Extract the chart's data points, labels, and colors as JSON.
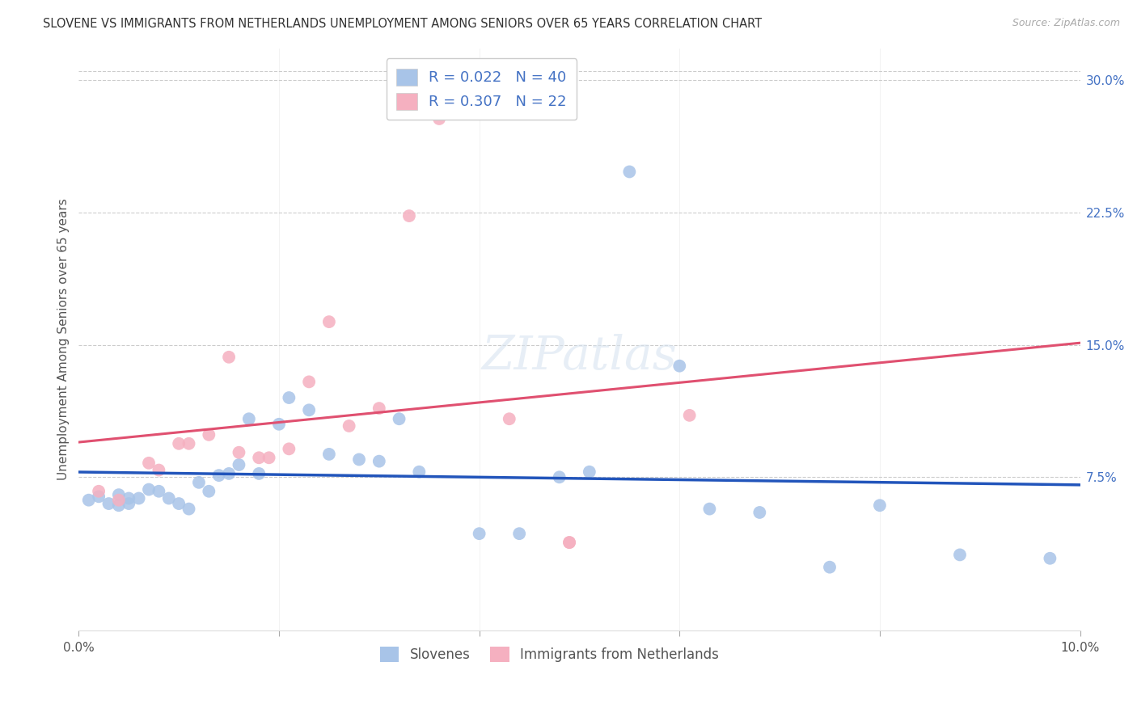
{
  "title": "SLOVENE VS IMMIGRANTS FROM NETHERLANDS UNEMPLOYMENT AMONG SENIORS OVER 65 YEARS CORRELATION CHART",
  "source": "Source: ZipAtlas.com",
  "ylabel": "Unemployment Among Seniors over 65 years",
  "xlim": [
    0.0,
    0.1
  ],
  "ylim": [
    -0.012,
    0.318
  ],
  "xticks": [
    0.0,
    0.02,
    0.04,
    0.06,
    0.08,
    0.1
  ],
  "xticklabels": [
    "0.0%",
    "",
    "",
    "",
    "",
    "10.0%"
  ],
  "yticks_right": [
    0.075,
    0.15,
    0.225,
    0.3
  ],
  "yticklabels_right": [
    "7.5%",
    "15.0%",
    "22.5%",
    "30.0%"
  ],
  "slovene_color": "#a8c4e8",
  "netherlands_color": "#f5b0c0",
  "line1_color": "#2255bb",
  "line2_color": "#e05070",
  "grid_color": "#cccccc",
  "background_color": "#ffffff",
  "slovene_x": [
    0.001,
    0.002,
    0.003,
    0.004,
    0.004,
    0.005,
    0.005,
    0.006,
    0.007,
    0.008,
    0.009,
    0.01,
    0.011,
    0.012,
    0.013,
    0.014,
    0.015,
    0.016,
    0.017,
    0.018,
    0.02,
    0.021,
    0.023,
    0.025,
    0.028,
    0.03,
    0.032,
    0.034,
    0.04,
    0.044,
    0.048,
    0.051,
    0.055,
    0.06,
    0.063,
    0.068,
    0.075,
    0.08,
    0.088,
    0.097
  ],
  "slovene_y": [
    0.062,
    0.064,
    0.06,
    0.059,
    0.065,
    0.063,
    0.06,
    0.063,
    0.068,
    0.067,
    0.063,
    0.06,
    0.057,
    0.072,
    0.067,
    0.076,
    0.077,
    0.082,
    0.108,
    0.077,
    0.105,
    0.12,
    0.113,
    0.088,
    0.085,
    0.084,
    0.108,
    0.078,
    0.043,
    0.043,
    0.075,
    0.078,
    0.248,
    0.138,
    0.057,
    0.055,
    0.024,
    0.059,
    0.031,
    0.029
  ],
  "netherlands_x": [
    0.002,
    0.004,
    0.007,
    0.008,
    0.01,
    0.011,
    0.013,
    0.015,
    0.016,
    0.018,
    0.019,
    0.021,
    0.023,
    0.025,
    0.027,
    0.03,
    0.033,
    0.036,
    0.043,
    0.049,
    0.049,
    0.061
  ],
  "netherlands_y": [
    0.067,
    0.062,
    0.083,
    0.079,
    0.094,
    0.094,
    0.099,
    0.143,
    0.089,
    0.086,
    0.086,
    0.091,
    0.129,
    0.163,
    0.104,
    0.114,
    0.223,
    0.278,
    0.108,
    0.038,
    0.038,
    0.11
  ]
}
